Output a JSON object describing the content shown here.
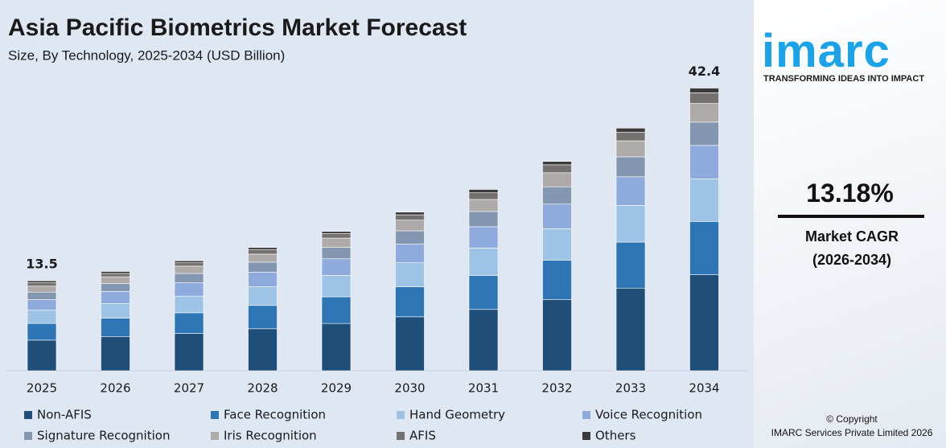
{
  "chart_data": {
    "type": "stacked_bar",
    "title": "Asia Pacific Biometrics Market Forecast",
    "subtitle": "Size, By Technology, 2025-2034 (USD Billion)",
    "categories": [
      "2025",
      "2026",
      "2027",
      "2028",
      "2029",
      "2030",
      "2031",
      "2032",
      "2033",
      "2034"
    ],
    "ylim": [
      0,
      45
    ],
    "series": [
      {
        "name": "Non-AFIS",
        "color": "#1f4e79",
        "values": [
          4.6,
          5.1,
          5.6,
          6.3,
          7.1,
          8.1,
          9.2,
          10.7,
          12.4,
          14.4
        ]
      },
      {
        "name": "Face Recognition",
        "color": "#2e75b6",
        "values": [
          2.5,
          2.8,
          3.1,
          3.5,
          4.0,
          4.5,
          5.1,
          5.9,
          6.9,
          8.0
        ]
      },
      {
        "name": "Hand Geometry",
        "color": "#9dc3e6",
        "values": [
          2.0,
          2.2,
          2.5,
          2.8,
          3.2,
          3.6,
          4.1,
          4.7,
          5.5,
          6.4
        ]
      },
      {
        "name": "Voice Recognition",
        "color": "#8faadc",
        "values": [
          1.6,
          1.8,
          2.0,
          2.2,
          2.5,
          2.8,
          3.2,
          3.7,
          4.3,
          5.0
        ]
      },
      {
        "name": "Signature Recognition",
        "color": "#8497b0",
        "values": [
          1.1,
          1.2,
          1.4,
          1.5,
          1.7,
          2.0,
          2.3,
          2.6,
          3.0,
          3.5
        ]
      },
      {
        "name": "Iris Recognition",
        "color": "#aeaaaa",
        "values": [
          0.9,
          1.0,
          1.1,
          1.2,
          1.4,
          1.6,
          1.8,
          2.1,
          2.4,
          2.8
        ]
      },
      {
        "name": "AFIS",
        "color": "#767171",
        "values": [
          0.5,
          0.5,
          0.5,
          0.7,
          0.7,
          0.8,
          1.0,
          1.2,
          1.3,
          1.6
        ]
      },
      {
        "name": "Others",
        "color": "#3a3a3a",
        "values": [
          0.3,
          0.3,
          0.3,
          0.3,
          0.3,
          0.4,
          0.5,
          0.5,
          0.6,
          0.7
        ]
      }
    ],
    "annotations": [
      {
        "category": "2025",
        "value": 13.5
      },
      {
        "category": "2034",
        "value": 42.4
      }
    ]
  },
  "side_panel": {
    "logo": "imarc",
    "tagline": "TRANSFORMING IDEAS INTO IMPACT",
    "cagr": "13.18%",
    "cagr_label": "Market CAGR",
    "cagr_period": "(2026-2034)",
    "copyright": "© Copyright",
    "copyright_holder": "IMARC Services Private Limited 2026"
  }
}
